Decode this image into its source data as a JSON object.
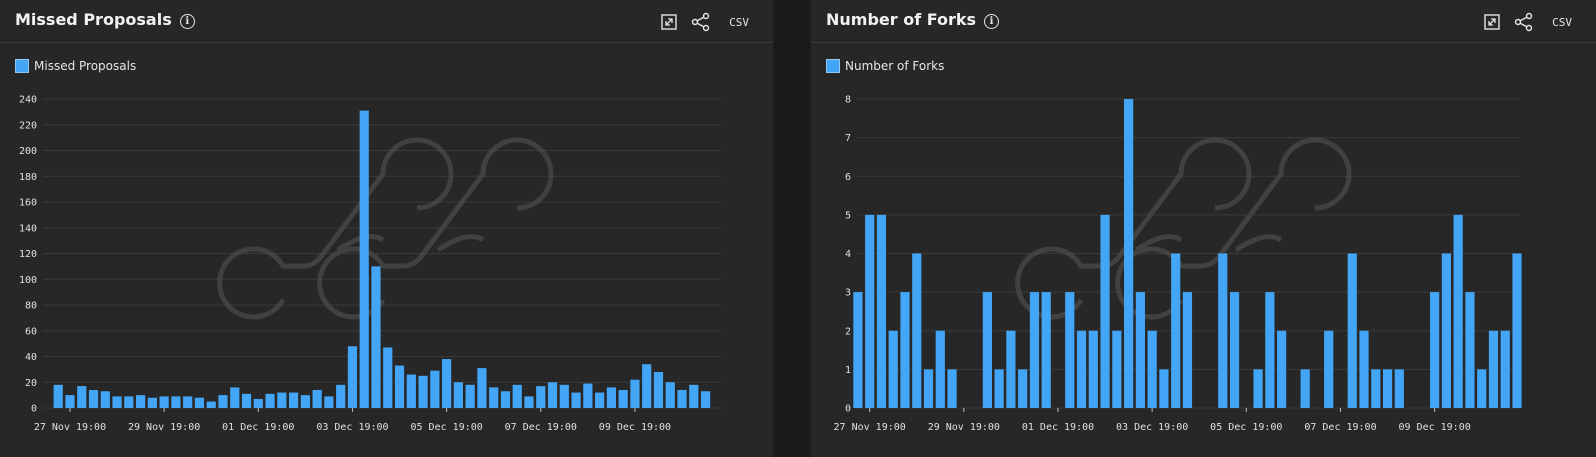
{
  "panels": [
    {
      "title": "Missed Proposals",
      "legend_label": "Missed Proposals",
      "csv_label": "CSV"
    },
    {
      "title": "Number of Forks",
      "legend_label": "Number of Forks",
      "csv_label": "CSV"
    }
  ],
  "colors": {
    "bar": "#42a5f5",
    "panel_bg": "#272727",
    "grid": "#3a3a3a",
    "watermark": "#4a4a4a"
  },
  "chart_data": [
    {
      "type": "bar",
      "title": "Missed Proposals",
      "series": [
        {
          "name": "Missed Proposals",
          "values": [
            18,
            10,
            17,
            14,
            13,
            9,
            9,
            10,
            8,
            9,
            9,
            9,
            8,
            5,
            10,
            16,
            11,
            7,
            11,
            12,
            12,
            10,
            14,
            9,
            18,
            48,
            231,
            110,
            47,
            33,
            26,
            25,
            29,
            38,
            20,
            18,
            31,
            16,
            13,
            18,
            9,
            17,
            20,
            18,
            12,
            19,
            12,
            16,
            14,
            22,
            34,
            28,
            20,
            14,
            18,
            13
          ]
        }
      ],
      "x_tick_labels": [
        "27 Nov 19:00",
        "29 Nov 19:00",
        "01 Dec 19:00",
        "03 Dec 19:00",
        "05 Dec 19:00",
        "07 Dec 19:00",
        "09 Dec 19:00"
      ],
      "x_tick_bar_index": [
        1,
        9,
        17,
        25,
        33,
        41,
        49
      ],
      "y_ticks": [
        0,
        20,
        40,
        60,
        80,
        100,
        120,
        140,
        160,
        180,
        200,
        220,
        240
      ],
      "ylim": [
        0,
        240
      ],
      "grid": true,
      "legend_position": "top-left"
    },
    {
      "type": "bar",
      "title": "Number of Forks",
      "series": [
        {
          "name": "Number of Forks",
          "values": [
            3,
            5,
            5,
            2,
            3,
            4,
            1,
            2,
            1,
            0,
            0,
            3,
            1,
            2,
            1,
            3,
            3,
            0,
            3,
            2,
            2,
            5,
            2,
            8,
            3,
            2,
            1,
            4,
            3,
            0,
            0,
            4,
            3,
            0,
            1,
            3,
            2,
            0,
            1,
            0,
            2,
            0,
            4,
            2,
            1,
            1,
            1,
            0,
            0,
            3,
            4,
            5,
            3,
            1,
            2,
            2,
            4
          ]
        }
      ],
      "x_tick_labels": [
        "27 Nov 19:00",
        "29 Nov 19:00",
        "01 Dec 19:00",
        "03 Dec 19:00",
        "05 Dec 19:00",
        "07 Dec 19:00",
        "09 Dec 19:00"
      ],
      "x_tick_bar_index": [
        1,
        9,
        17,
        25,
        33,
        41,
        49
      ],
      "y_ticks": [
        0,
        1,
        2,
        3,
        4,
        5,
        6,
        7,
        8
      ],
      "ylim": [
        0,
        8
      ],
      "grid": true,
      "legend_position": "top-left"
    }
  ]
}
